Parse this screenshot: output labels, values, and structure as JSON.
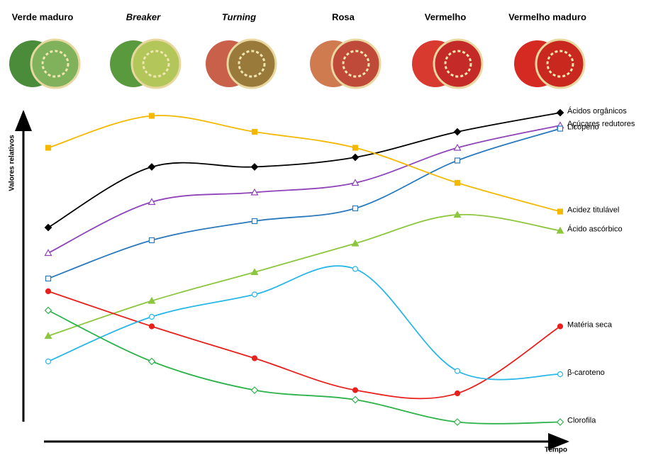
{
  "chart_data": {
    "type": "line",
    "categories": [
      "Verde maduro",
      "Breaker",
      "Turning",
      "Rosa",
      "Vermelho",
      "Vermelho maduro"
    ],
    "y_label": "Valores relativos",
    "x_label": "Tempo",
    "ylim": [
      0,
      100
    ],
    "series": [
      {
        "name": "Ácidos orgânicos",
        "color": "#000000",
        "marker": "diamond",
        "filled": true,
        "values": [
          62,
          81,
          81,
          84,
          92,
          98
        ]
      },
      {
        "name": "Açúcares redutores",
        "color": "#8e44b8",
        "marker": "triangle",
        "filled": false,
        "values": [
          54,
          70,
          73,
          76,
          87,
          94
        ]
      },
      {
        "name": "Licopeno",
        "color": "#2a78bd",
        "marker": "square",
        "filled": false,
        "values": [
          46,
          58,
          64,
          68,
          83,
          93
        ]
      },
      {
        "name": "Acidez titulável",
        "color": "#f5b800",
        "marker": "square",
        "filled": true,
        "values": [
          87,
          97,
          92,
          87,
          76,
          67
        ]
      },
      {
        "name": "Ácido ascórbico",
        "color": "#8cc63f",
        "marker": "triangle",
        "filled": true,
        "values": [
          28,
          39,
          48,
          57,
          66,
          61
        ]
      },
      {
        "name": "Matéria seca",
        "color": "#e8201c",
        "marker": "circle",
        "filled": true,
        "values": [
          42,
          31,
          21,
          11,
          10,
          31
        ]
      },
      {
        "name": "β-caroteno",
        "color": "#29b6e8",
        "marker": "circle",
        "filled": false,
        "values": [
          20,
          34,
          41,
          49,
          17,
          16
        ]
      },
      {
        "name": "Clorofila",
        "color": "#2eb24a",
        "marker": "diamond",
        "filled": false,
        "values": [
          36,
          20,
          11,
          8,
          1,
          1
        ]
      }
    ]
  }
}
